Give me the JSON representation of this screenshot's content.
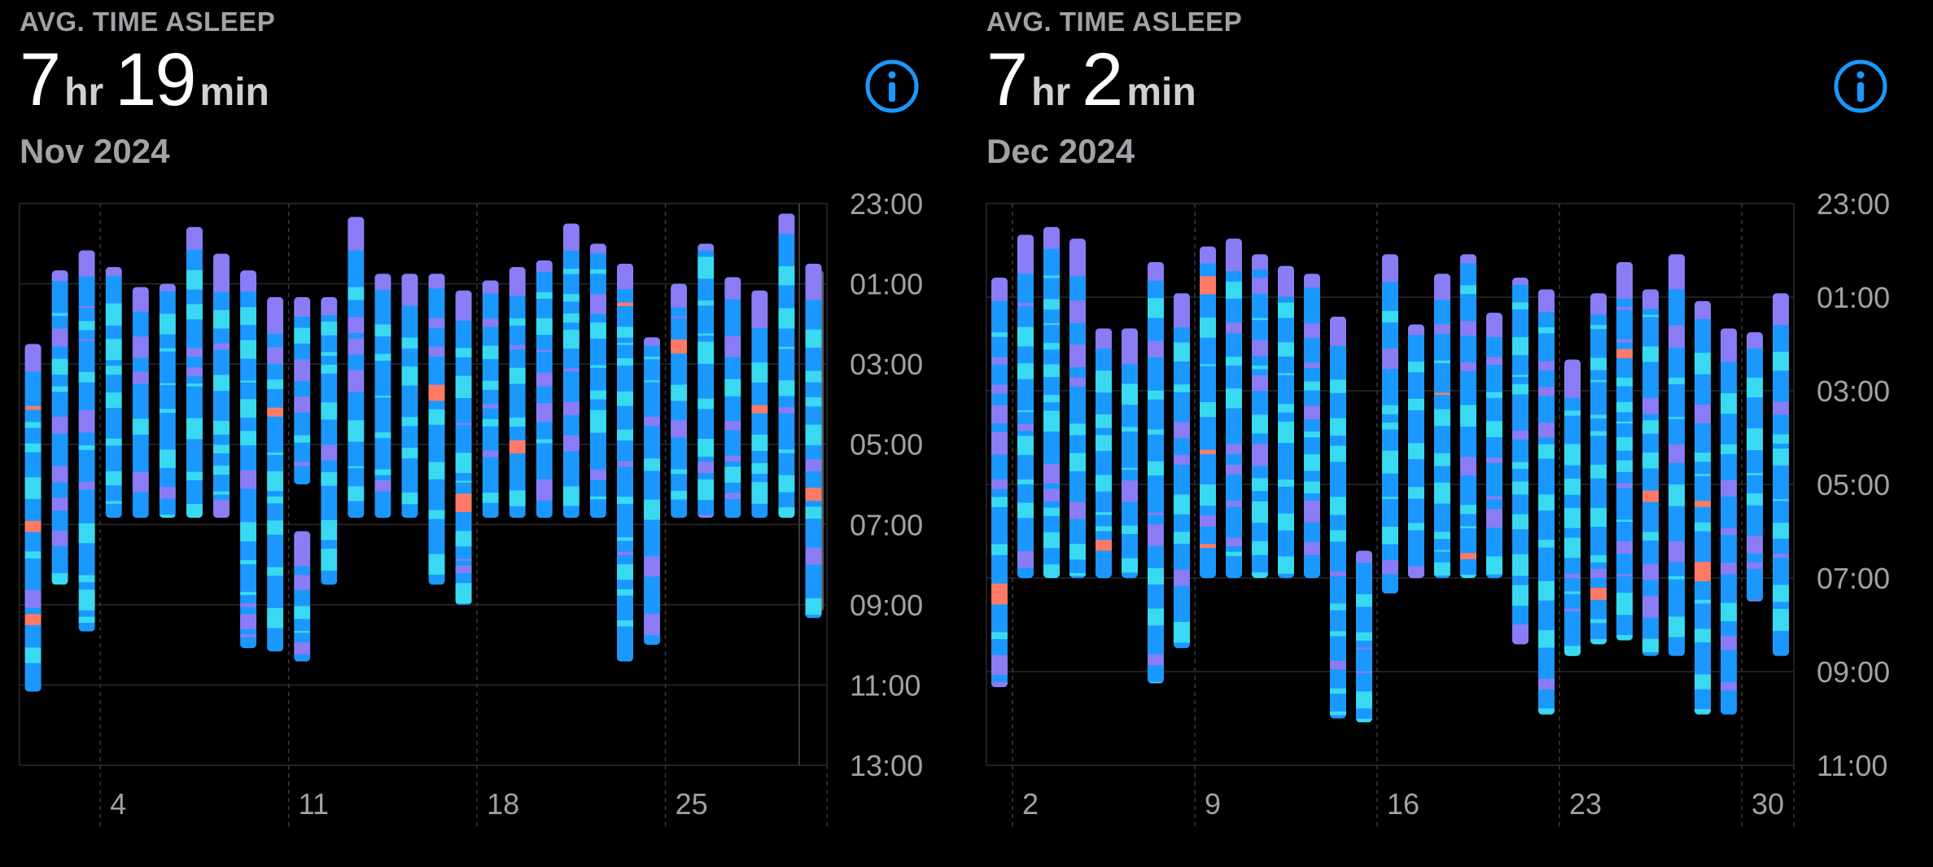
{
  "colors": {
    "background": "#000000",
    "core": "#1a98ff",
    "deep": "#3ad9f2",
    "rem": "#8a7cf5",
    "awake": "#ff7a66",
    "grid": "#2a2a2e",
    "label": "#a1a1a6",
    "info": "#1a98ff"
  },
  "panels": [
    {
      "title": "AVG. TIME ASLEEP",
      "hours": "7",
      "hours_unit": "hr",
      "minutes": "19",
      "minutes_unit": "min",
      "period": "Nov 2024",
      "info_icon": "info-icon"
    },
    {
      "title": "AVG. TIME ASLEEP",
      "hours": "7",
      "hours_unit": "hr",
      "minutes": "2",
      "minutes_unit": "min",
      "period": "Dec 2024",
      "info_icon": "info-icon"
    }
  ],
  "chart_data": [
    {
      "type": "bar",
      "subtype": "floating-range",
      "title": "Nov 2024",
      "y_axis": {
        "ticks": [
          "23:00",
          "01:00",
          "03:00",
          "05:00",
          "07:00",
          "09:00",
          "11:00",
          "13:00"
        ],
        "start_hour": 23,
        "end_hour": 37,
        "direction": "top-to-bottom"
      },
      "x_axis": {
        "start_day": 1,
        "end_day": 30,
        "ticks": [
          "4",
          "11",
          "18",
          "25"
        ],
        "tick_days": [
          4,
          11,
          18,
          25
        ]
      },
      "series": [
        {
          "day": 1,
          "start": "02:30",
          "end": "11:10"
        },
        {
          "day": 2,
          "start": "00:40",
          "end": "08:30"
        },
        {
          "day": 3,
          "start": "00:10",
          "end": "09:40"
        },
        {
          "day": 4,
          "start": "00:35",
          "end": "06:50"
        },
        {
          "day": 5,
          "start": "01:05",
          "end": "06:50"
        },
        {
          "day": 6,
          "start": "01:00",
          "end": "06:50"
        },
        {
          "day": 7,
          "start": "23:35",
          "end": "06:50"
        },
        {
          "day": 8,
          "start": "00:15",
          "end": "06:50"
        },
        {
          "day": 9,
          "start": "00:40",
          "end": "10:05"
        },
        {
          "day": 10,
          "start": "01:20",
          "end": "10:10"
        },
        {
          "day": 11,
          "start": "01:20",
          "end": "06:00"
        },
        {
          "day": 11,
          "start": "07:10",
          "end": "10:25"
        },
        {
          "day": 12,
          "start": "01:20",
          "end": "08:30"
        },
        {
          "day": 13,
          "start": "23:20",
          "end": "06:50"
        },
        {
          "day": 14,
          "start": "00:45",
          "end": "06:50"
        },
        {
          "day": 15,
          "start": "00:45",
          "end": "06:50"
        },
        {
          "day": 16,
          "start": "00:45",
          "end": "08:30"
        },
        {
          "day": 17,
          "start": "01:10",
          "end": "09:00"
        },
        {
          "day": 18,
          "start": "00:55",
          "end": "06:50"
        },
        {
          "day": 19,
          "start": "00:35",
          "end": "06:50"
        },
        {
          "day": 20,
          "start": "00:25",
          "end": "06:50"
        },
        {
          "day": 21,
          "start": "23:30",
          "end": "06:50"
        },
        {
          "day": 22,
          "start": "00:00",
          "end": "06:50"
        },
        {
          "day": 23,
          "start": "00:30",
          "end": "10:25"
        },
        {
          "day": 24,
          "start": "02:20",
          "end": "10:00"
        },
        {
          "day": 25,
          "start": "01:00",
          "end": "06:50"
        },
        {
          "day": 26,
          "start": "00:00",
          "end": "06:50"
        },
        {
          "day": 27,
          "start": "00:50",
          "end": "06:50"
        },
        {
          "day": 28,
          "start": "01:10",
          "end": "06:50"
        },
        {
          "day": 29,
          "start": "23:15",
          "end": "06:50"
        },
        {
          "day": 30,
          "start": "00:30",
          "end": "09:20"
        }
      ],
      "highlight": {
        "start": "00:40",
        "end": "09:10"
      }
    },
    {
      "type": "bar",
      "subtype": "floating-range",
      "title": "Dec 2024",
      "y_axis": {
        "ticks": [
          "23:00",
          "01:00",
          "03:00",
          "05:00",
          "07:00",
          "09:00",
          "11:00"
        ],
        "start_hour": 23,
        "end_hour": 35,
        "direction": "top-to-bottom"
      },
      "x_axis": {
        "start_day": 1,
        "end_day": 31,
        "ticks": [
          "2",
          "9",
          "16",
          "23",
          "30"
        ],
        "tick_days": [
          2,
          9,
          16,
          23,
          30
        ]
      },
      "series": [
        {
          "day": 1,
          "start": "00:35",
          "end": "09:20"
        },
        {
          "day": 2,
          "start": "23:40",
          "end": "07:00"
        },
        {
          "day": 3,
          "start": "23:30",
          "end": "07:00"
        },
        {
          "day": 4,
          "start": "23:45",
          "end": "07:00"
        },
        {
          "day": 5,
          "start": "01:40",
          "end": "07:00"
        },
        {
          "day": 6,
          "start": "01:40",
          "end": "07:00"
        },
        {
          "day": 7,
          "start": "00:15",
          "end": "09:15"
        },
        {
          "day": 8,
          "start": "00:55",
          "end": "08:30"
        },
        {
          "day": 9,
          "start": "23:55",
          "end": "07:00"
        },
        {
          "day": 10,
          "start": "23:45",
          "end": "07:00"
        },
        {
          "day": 11,
          "start": "00:05",
          "end": "07:00"
        },
        {
          "day": 12,
          "start": "00:20",
          "end": "07:00"
        },
        {
          "day": 13,
          "start": "00:30",
          "end": "07:00"
        },
        {
          "day": 14,
          "start": "01:25",
          "end": "10:00"
        },
        {
          "day": 15,
          "start": "06:25",
          "end": "10:05"
        },
        {
          "day": 16,
          "start": "00:05",
          "end": "07:20"
        },
        {
          "day": 17,
          "start": "01:35",
          "end": "07:00"
        },
        {
          "day": 18,
          "start": "00:30",
          "end": "07:00"
        },
        {
          "day": 19,
          "start": "00:05",
          "end": "07:00"
        },
        {
          "day": 20,
          "start": "01:20",
          "end": "07:00"
        },
        {
          "day": 21,
          "start": "00:35",
          "end": "08:25"
        },
        {
          "day": 22,
          "start": "00:50",
          "end": "09:55"
        },
        {
          "day": 23,
          "start": "02:20",
          "end": "08:40"
        },
        {
          "day": 24,
          "start": "00:55",
          "end": "08:25"
        },
        {
          "day": 25,
          "start": "00:15",
          "end": "08:20"
        },
        {
          "day": 26,
          "start": "00:50",
          "end": "08:40"
        },
        {
          "day": 27,
          "start": "00:05",
          "end": "08:40"
        },
        {
          "day": 28,
          "start": "01:05",
          "end": "09:55"
        },
        {
          "day": 29,
          "start": "01:40",
          "end": "09:55"
        },
        {
          "day": 30,
          "start": "01:45",
          "end": "07:30"
        },
        {
          "day": 31,
          "start": "00:55",
          "end": "08:40"
        }
      ]
    }
  ]
}
